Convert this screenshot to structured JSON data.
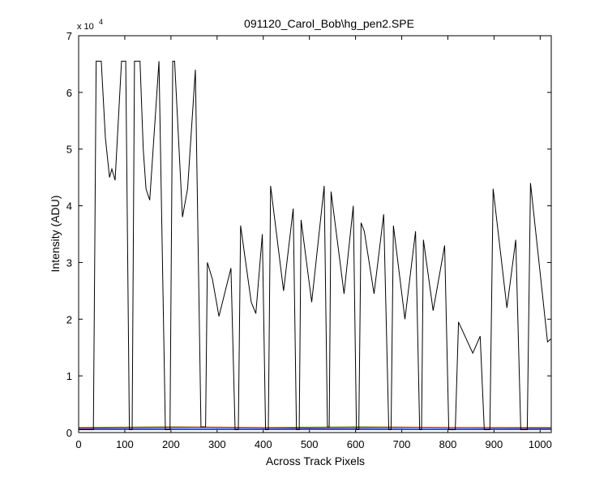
{
  "chart_data": {
    "type": "line",
    "title": "091120_Carol_Bob\\hg_pen2.SPE",
    "x_label": "Across Track Pixels",
    "y_label": "Intensity (ADU)",
    "y_exponent": {
      "base": "x 10",
      "power": "4"
    },
    "xlim": [
      0,
      1024
    ],
    "ylim": [
      0,
      7
    ],
    "xticks": [
      0,
      100,
      200,
      300,
      400,
      500,
      600,
      700,
      800,
      900,
      1000
    ],
    "yticks": [
      0,
      1,
      2,
      3,
      4,
      5,
      6,
      7
    ],
    "grid": false,
    "series": [
      {
        "color": "#00a0a0",
        "x": [
          0,
          1023
        ],
        "values": [
          0.05,
          0.05
        ]
      },
      {
        "color": "#0000ff",
        "x": [
          0,
          1023
        ],
        "values": [
          0.06,
          0.06
        ]
      },
      {
        "color": "#00a000",
        "x": [
          0,
          200,
          400,
          600,
          800,
          1023
        ],
        "values": [
          0.09,
          0.1,
          0.09,
          0.1,
          0.09,
          0.09
        ]
      },
      {
        "color": "#e00000",
        "x": [
          0,
          250,
          500,
          750,
          1023
        ],
        "values": [
          0.08,
          0.09,
          0.08,
          0.09,
          0.08
        ]
      },
      {
        "color": "#000000",
        "x": [
          0,
          32,
          35,
          38,
          49,
          58,
          67,
          72,
          79,
          93,
          102,
          110,
          116,
          121,
          133,
          140,
          146,
          154,
          174,
          188,
          198,
          204,
          208,
          225,
          236,
          253,
          265,
          275,
          279,
          290,
          304,
          330,
          339,
          346,
          351,
          374,
          384,
          398,
          405,
          411,
          416,
          444,
          465,
          472,
          478,
          482,
          505,
          532,
          539,
          543,
          547,
          575,
          595,
          602,
          607,
          612,
          619,
          640,
          661,
          672,
          677,
          682,
          707,
          730,
          739,
          743,
          747,
          768,
          793,
          802,
          816,
          823,
          854,
          870,
          879,
          891,
          898,
          928,
          947,
          958,
          972,
          979,
          1016,
          1023
        ],
        "values": [
          0.05,
          0.05,
          3.2,
          6.55,
          6.55,
          5.2,
          4.5,
          4.65,
          4.45,
          6.55,
          6.55,
          0.05,
          0.05,
          6.55,
          6.55,
          5.0,
          4.3,
          4.1,
          6.55,
          0.05,
          0.05,
          6.55,
          6.55,
          3.8,
          4.3,
          6.4,
          0.1,
          0.1,
          3.0,
          2.7,
          2.05,
          2.9,
          0.05,
          0.05,
          3.65,
          2.3,
          2.1,
          3.5,
          0.05,
          0.05,
          4.35,
          2.5,
          3.95,
          0.05,
          0.05,
          3.75,
          2.3,
          4.35,
          0.1,
          0.1,
          4.25,
          2.45,
          4.0,
          0.05,
          0.05,
          3.7,
          3.55,
          2.45,
          3.85,
          0.05,
          0.05,
          3.65,
          2.0,
          3.55,
          0.05,
          0.05,
          3.4,
          2.15,
          3.3,
          0.05,
          0.05,
          1.95,
          1.4,
          1.7,
          0.05,
          0.05,
          4.3,
          2.2,
          3.4,
          0.05,
          0.05,
          4.4,
          1.6,
          1.65
        ]
      }
    ]
  }
}
